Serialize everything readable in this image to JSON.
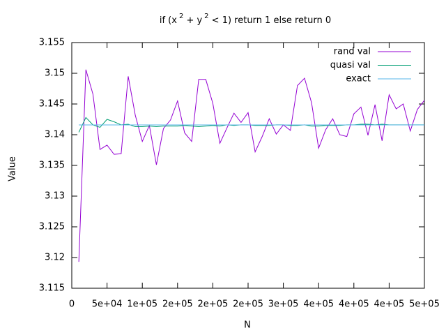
{
  "chart_data": {
    "type": "line",
    "title": [
      "if (x",
      "2",
      " + y",
      "2",
      " < 1) return 1 else return 0"
    ],
    "x_label": "N",
    "y_label": "Value",
    "xlim": [
      0,
      500000
    ],
    "ylim": [
      3.115,
      3.155
    ],
    "xticks": [
      0,
      {
        "value": 50000,
        "label": "5e+04"
      },
      {
        "value": 100000,
        "label": "1e+05"
      },
      {
        "value": 150000,
        "label": "2e+05"
      },
      {
        "value": 200000,
        "label": "2e+05"
      },
      {
        "value": 250000,
        "label": "2e+05"
      },
      {
        "value": 300000,
        "label": "3e+05"
      },
      {
        "value": 350000,
        "label": "4e+05"
      },
      {
        "value": 400000,
        "label": "4e+05"
      },
      {
        "value": 450000,
        "label": "4e+05"
      },
      {
        "value": 500000,
        "label": "5e+05"
      }
    ],
    "yticks": [
      3.115,
      3.12,
      3.125,
      3.13,
      3.135,
      3.14,
      3.145,
      3.15,
      3.155
    ],
    "legend": "top-right",
    "x": [
      10000,
      20000,
      30000,
      40000,
      50000,
      60000,
      70000,
      80000,
      90000,
      100000,
      110000,
      120000,
      130000,
      140000,
      150000,
      160000,
      170000,
      180000,
      190000,
      200000,
      210000,
      220000,
      230000,
      240000,
      250000,
      260000,
      270000,
      280000,
      290000,
      300000,
      310000,
      320000,
      330000,
      340000,
      350000,
      360000,
      370000,
      380000,
      390000,
      400000,
      410000,
      420000,
      430000,
      440000,
      450000,
      460000,
      470000,
      480000,
      490000,
      500000
    ],
    "series": [
      {
        "name": "rand val",
        "color": "#9400d3",
        "values": [
          3.1193,
          3.1506,
          3.1466,
          3.1376,
          3.1383,
          3.1368,
          3.1369,
          3.1495,
          3.1432,
          3.1389,
          3.1415,
          3.1351,
          3.141,
          3.1424,
          3.1455,
          3.1403,
          3.1389,
          3.149,
          3.149,
          3.1451,
          3.1386,
          3.1411,
          3.1435,
          3.142,
          3.1436,
          3.1372,
          3.1397,
          3.1426,
          3.1401,
          3.1416,
          3.1407,
          3.148,
          3.1492,
          3.1452,
          3.1378,
          3.1408,
          3.1426,
          3.14,
          3.1397,
          3.1434,
          3.1445,
          3.1399,
          3.1449,
          3.139,
          3.1465,
          3.1442,
          3.145,
          3.1406,
          3.1441,
          3.1456
        ]
      },
      {
        "name": "quasi val",
        "color": "#009e73",
        "values": [
          3.1404,
          3.1428,
          3.1416,
          3.1412,
          3.1425,
          3.1421,
          3.1416,
          3.1417,
          3.1413,
          3.1413,
          3.1414,
          3.1413,
          3.1414,
          3.1414,
          3.1414,
          3.1415,
          3.1414,
          3.1413,
          3.1414,
          3.1415,
          3.1414,
          3.1416,
          3.1415,
          3.1416,
          3.1416,
          3.1415,
          3.1415,
          3.1415,
          3.1416,
          3.1416,
          3.1415,
          3.1415,
          3.1416,
          3.1414,
          3.1414,
          3.1415,
          3.1415,
          3.1415,
          3.1416,
          3.1416,
          3.1417,
          3.1417,
          3.1416,
          3.1417,
          3.1416,
          3.1416,
          3.1416,
          3.1416,
          3.1416,
          3.1416
        ]
      },
      {
        "name": "exact",
        "color": "#56b4e9",
        "values": [
          3.14159,
          3.14159,
          3.14159,
          3.14159,
          3.14159,
          3.14159,
          3.14159,
          3.14159,
          3.14159,
          3.14159,
          3.14159,
          3.14159,
          3.14159,
          3.14159,
          3.14159,
          3.14159,
          3.14159,
          3.14159,
          3.14159,
          3.14159,
          3.14159,
          3.14159,
          3.14159,
          3.14159,
          3.14159,
          3.14159,
          3.14159,
          3.14159,
          3.14159,
          3.14159,
          3.14159,
          3.14159,
          3.14159,
          3.14159,
          3.14159,
          3.14159,
          3.14159,
          3.14159,
          3.14159,
          3.14159,
          3.14159,
          3.14159,
          3.14159,
          3.14159,
          3.14159,
          3.14159,
          3.14159,
          3.14159,
          3.14159,
          3.14159
        ]
      }
    ]
  }
}
